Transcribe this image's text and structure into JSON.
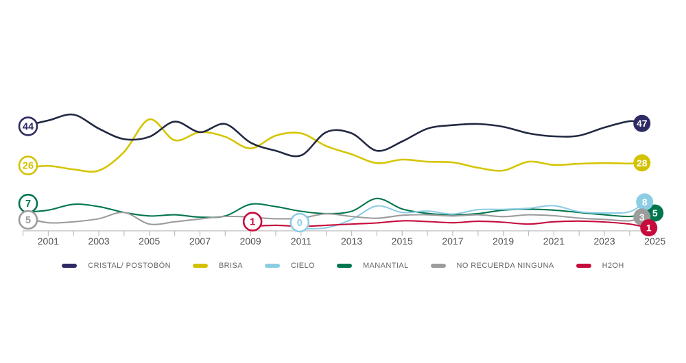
{
  "chart_data": {
    "type": "line",
    "title": "",
    "xlabel": "",
    "ylabel": "",
    "x_range": [
      2000,
      2025
    ],
    "ylim": [
      0,
      52
    ],
    "grid": false,
    "legend_position": "bottom",
    "years": [
      2000,
      2001,
      2002,
      2003,
      2004,
      2005,
      2006,
      2007,
      2008,
      2009,
      2010,
      2011,
      2012,
      2013,
      2014,
      2015,
      2016,
      2017,
      2018,
      2019,
      2020,
      2021,
      2022,
      2023,
      2024,
      2025
    ],
    "x_axis": {
      "tick_step_years": 1,
      "labels": [
        "2001",
        "2003",
        "2005",
        "2007",
        "2009",
        "2011",
        "2013",
        "2015",
        "2017",
        "2019",
        "2021",
        "2023",
        "2025"
      ]
    },
    "series": [
      {
        "id": "cristal",
        "name": "CRISTAL/ POSTOBÓN",
        "color": "#212842",
        "badge_color": "#2e2a63",
        "start_label": "44",
        "end_label": "47",
        "values": [
          44,
          46.5,
          49,
          43,
          38.5,
          39.5,
          46,
          41.5,
          45,
          37,
          33.5,
          31.5,
          41.5,
          41,
          33.5,
          37.5,
          43,
          44.5,
          45,
          43.8,
          41,
          39.7,
          40,
          43.5,
          46.2,
          47
        ]
      },
      {
        "id": "brisa",
        "name": "BRISA",
        "color": "#d5c502",
        "badge_color": "#d3c203",
        "start_label": "26",
        "end_label": "28",
        "values": [
          26,
          27,
          25.5,
          25,
          33,
          47,
          38,
          41.5,
          39.5,
          34.5,
          40,
          41,
          35.5,
          32,
          28.2,
          29.7,
          28.8,
          28.5,
          26.2,
          25,
          28.8,
          27.4,
          27.9,
          28.2,
          28,
          28
        ]
      },
      {
        "id": "cielo",
        "name": "CIELO",
        "color": "#8ccde4",
        "badge_color": "#8ccde4",
        "start_label": "0",
        "end_label": "8",
        "values": [
          null,
          null,
          null,
          null,
          null,
          null,
          null,
          null,
          null,
          null,
          null,
          0,
          0.4,
          4,
          9.8,
          7,
          7.6,
          6.3,
          8.2,
          8.3,
          8.8,
          9.9,
          7.3,
          6.8,
          7.3,
          8
        ]
      },
      {
        "id": "manantial",
        "name": "MANANTIAL",
        "color": "#00764e",
        "badge_color": "#00764e",
        "start_label": "7",
        "end_label": "5",
        "values": [
          7,
          8,
          10.5,
          9.5,
          7,
          5.5,
          6,
          5,
          5.5,
          10.5,
          9.5,
          7.5,
          6.5,
          7.5,
          13,
          8.5,
          6.6,
          6,
          6.5,
          8,
          8.4,
          8,
          7,
          6,
          5.3,
          5
        ]
      },
      {
        "id": "no_recuerda",
        "name": "NO RECUERDA NINGUNA",
        "color": "#9c9c9c",
        "badge_color": "#9c9c9c",
        "start_label": "5",
        "end_label": "3",
        "values": [
          5,
          2.6,
          3,
          4.3,
          7,
          2,
          3,
          4.2,
          5.3,
          5,
          4.3,
          4.6,
          6.4,
          5.3,
          4.5,
          5.8,
          6,
          5.5,
          6,
          5.2,
          6,
          5.6,
          4.6,
          4,
          3.4,
          3
        ]
      },
      {
        "id": "h2oh",
        "name": "H2OH",
        "color": "#c60c3c",
        "badge_color": "#c60c3c",
        "start_label": "1",
        "end_label": "1",
        "values": [
          null,
          null,
          null,
          null,
          null,
          null,
          null,
          null,
          null,
          1,
          1.5,
          1,
          1.5,
          2,
          2.5,
          3.4,
          3.1,
          2.6,
          3.2,
          2.8,
          2,
          3,
          3.3,
          2.9,
          2,
          1
        ]
      }
    ]
  },
  "legend": {
    "items": [
      {
        "id": "cristal",
        "label": "CRISTAL/ POSTOBÓN",
        "color": "#2e2a63"
      },
      {
        "id": "brisa",
        "label": "BRISA",
        "color": "#d3c203"
      },
      {
        "id": "cielo",
        "label": "CIELO",
        "color": "#8ccde4"
      },
      {
        "id": "manantial",
        "label": "MANANTIAL",
        "color": "#00764e"
      },
      {
        "id": "no_recuerda",
        "label": "NO RECUERDA NINGUNA",
        "color": "#9c9c9c"
      },
      {
        "id": "h2oh",
        "label": "H2OH",
        "color": "#c60c3c"
      }
    ]
  },
  "colors": {
    "axis": "#bcbcbc",
    "axis_text": "#515151",
    "legend_text": "#63666b",
    "background": "#ffffff"
  }
}
